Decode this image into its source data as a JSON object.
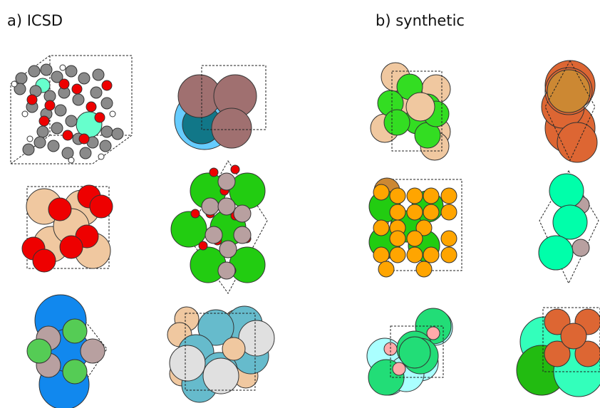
{
  "panels": [
    {
      "label": "a) ICSD"
    },
    {
      "label": "b) synthetic"
    }
  ]
}
